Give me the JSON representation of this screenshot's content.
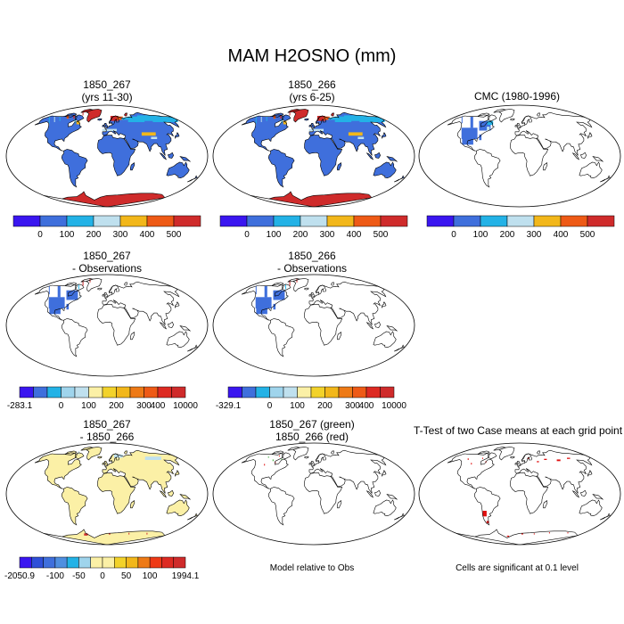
{
  "figure": {
    "title": "MAM H2OSNO (mm)"
  },
  "panels": [
    {
      "title1": "1850_267",
      "title2": "(yrs 11-30)"
    },
    {
      "title1": "1850_266",
      "title2": "(yrs 6-25)"
    },
    {
      "title1": "CMC (1980-1996)",
      "title2": ""
    },
    {
      "title1": "1850_267",
      "title2": "- Observations"
    },
    {
      "title1": "1850_266",
      "title2": "- Observations"
    },
    {
      "title1": "1850_267",
      "title2": "- 1850_266"
    },
    {
      "title1": "1850_267 (green)",
      "title2": "1850_266 (red)"
    },
    {
      "title1": "T-Test of two Case means at each grid point",
      "title2": ""
    }
  ],
  "notes": {
    "model_relative": "Model relative to Obs",
    "significance": "Cells are significant at 0.1 level"
  },
  "colors": {
    "abs_scale": [
      "#3a16f0",
      "#3f6fdc",
      "#23b2e6",
      "#bfe0ee",
      "#f2b71a",
      "#ee5a16",
      "#cf2b2b"
    ],
    "diff_scale": [
      "#3a16f0",
      "#3f6fdc",
      "#23b2e6",
      "#9fd4ec",
      "#bfe0ee",
      "#fbf0a6",
      "#f2d22a",
      "#f2b71a",
      "#ee7a16",
      "#ee5a16",
      "#dd2a22",
      "#cf2b2b"
    ],
    "anom_scale": [
      "#3a16f0",
      "#2f4fd8",
      "#3f6fdc",
      "#4f8fe0",
      "#23b2e6",
      "#9fd4ec",
      "#fbf0a6",
      "#fbf0a6",
      "#f2d22a",
      "#f2b71a",
      "#ee7a16",
      "#ee3a16",
      "#dd2a22",
      "#cf2b2b"
    ]
  },
  "chart_data": [
    {
      "type": "map",
      "panel": "1850_267 (yrs 11-30)",
      "colorbar_labels": [
        "0",
        "100",
        "200",
        "300",
        "400",
        "500"
      ]
    },
    {
      "type": "map",
      "panel": "1850_266 (yrs 6-25)",
      "colorbar_labels": [
        "0",
        "100",
        "200",
        "300",
        "400",
        "500"
      ]
    },
    {
      "type": "map",
      "panel": "CMC (1980-1996)",
      "colorbar_labels": [
        "0",
        "100",
        "200",
        "300",
        "400",
        "500"
      ]
    },
    {
      "type": "map",
      "panel": "1850_267 - Observations",
      "colorbar_labels": [
        "-283.1",
        "0",
        "100",
        "200",
        "300",
        "400",
        "10000"
      ]
    },
    {
      "type": "map",
      "panel": "1850_266 - Observations",
      "colorbar_labels": [
        "-329.1",
        "0",
        "100",
        "200",
        "300",
        "400",
        "10000"
      ]
    },
    {
      "type": "map",
      "panel": "1850_267 - 1850_266",
      "colorbar_labels": [
        "-2050.9",
        "-100",
        "-50",
        "0",
        "50",
        "100",
        "1994.1"
      ]
    },
    {
      "type": "map",
      "panel": "1850_267 (green) 1850_266 (red)"
    },
    {
      "type": "map",
      "panel": "T-Test of two Case means at each grid point"
    }
  ]
}
